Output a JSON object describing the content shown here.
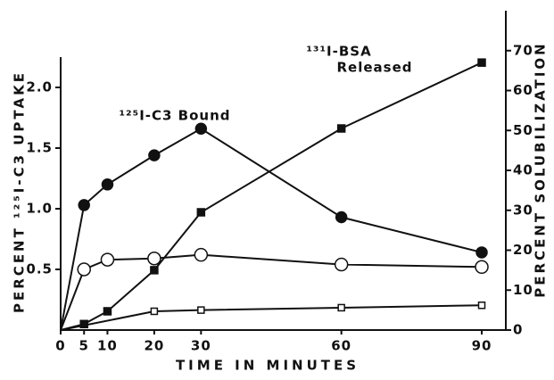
{
  "chart_data": {
    "type": "line",
    "xlabel": "TIME IN MINUTES",
    "ylabel": "PERCENT ¹²⁵I-C3 UPTAKE",
    "y2label": "PERCENT SOLUBILIZATION",
    "xlim": [
      0,
      90
    ],
    "xticks": [
      0,
      5,
      10,
      20,
      30,
      60,
      90
    ],
    "ylim": [
      0,
      2.25
    ],
    "yticks": [
      0.5,
      {
        "value": 1,
        "label": "1.0"
      },
      1.5,
      {
        "value": 2,
        "label": "2.0"
      }
    ],
    "y2lim": [
      0,
      80
    ],
    "y2ticks": [
      0,
      10,
      20,
      30,
      40,
      50,
      60,
      70
    ],
    "annotations": [
      {
        "text": "¹²⁵I-C3 Bound"
      },
      {
        "text": "¹³¹I-BSA"
      },
      {
        "text": "Released"
      }
    ],
    "series": [
      {
        "color": "#111111",
        "marker": "filled-circle",
        "x": [
          0,
          5,
          10,
          20,
          30,
          60,
          90
        ],
        "values": [
          0,
          1.03,
          1.2,
          1.44,
          1.66,
          0.93,
          0.64
        ]
      },
      {
        "color": "#111111",
        "marker": "open-circle",
        "x": [
          0,
          5,
          10,
          20,
          30,
          60,
          90
        ],
        "values": [
          0,
          0.5,
          0.58,
          0.59,
          0.62,
          0.54,
          0.52
        ]
      },
      {
        "color": "#111111",
        "marker": "filled-square",
        "axis": "y2",
        "x": [
          0,
          5,
          10,
          20,
          30,
          60,
          90
        ],
        "values": [
          0,
          1.5,
          4.7,
          15,
          29.5,
          50.5,
          67
        ]
      },
      {
        "color": "#111111",
        "marker": "open-square",
        "axis": "y2",
        "x": [
          0,
          20,
          30,
          60,
          90
        ],
        "values": [
          0,
          4.7,
          5,
          5.6,
          6.2
        ]
      }
    ]
  }
}
